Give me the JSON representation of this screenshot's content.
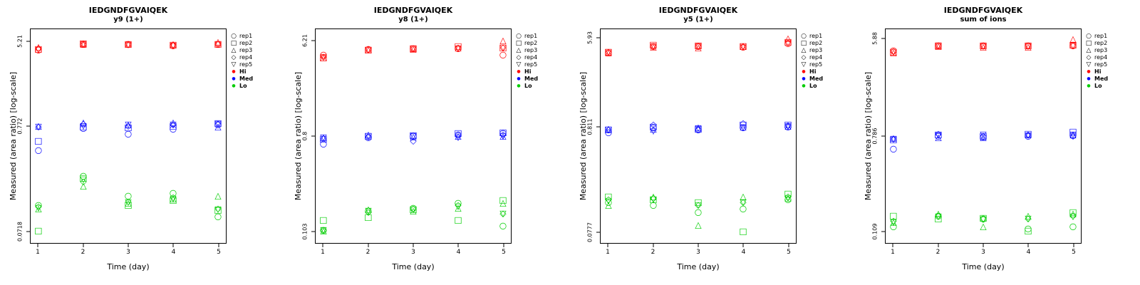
{
  "figure": {
    "xlabel": "Time (day)",
    "ylabel": "Measured (area ratio) [log-scale]",
    "x_ticks": [
      "1",
      "2",
      "3",
      "4",
      "5"
    ],
    "legend": {
      "rep_items": [
        {
          "label": "rep1",
          "marker": "circle"
        },
        {
          "label": "rep2",
          "marker": "square"
        },
        {
          "label": "rep3",
          "marker": "triangle"
        },
        {
          "label": "rep4",
          "marker": "diamond"
        },
        {
          "label": "rep5",
          "marker": "triangle-down"
        }
      ],
      "group_items": [
        {
          "label": "Hi",
          "color": "#FF0000"
        },
        {
          "label": "Med",
          "color": "#0000FF"
        },
        {
          "label": "Lo",
          "color": "#00CD00"
        }
      ]
    },
    "colors": {
      "hi": "#FF0000",
      "med": "#0000FF",
      "lo": "#00CD00"
    }
  },
  "chart_data": [
    {
      "type": "scatter",
      "title": "IEDGNDFGVAIQEK",
      "subtitle": "y9 (1+)",
      "xlabel": "Time (day)",
      "ylabel": "Measured (area ratio) [log-scale]",
      "x": [
        1,
        2,
        3,
        4,
        5
      ],
      "yscale": "log",
      "ylim": [
        0.055,
        7.0
      ],
      "yticks": [
        5.21,
        0.772,
        0.0718
      ],
      "ytick_labels": [
        "5.21",
        "0.772",
        "0.0718"
      ],
      "series": [
        {
          "name": "Hi",
          "color": "#FF0000",
          "reps": [
            {
              "name": "rep1",
              "marker": "circle",
              "values": [
                4.35,
                5.0,
                4.95,
                4.8,
                4.95
              ]
            },
            {
              "name": "rep2",
              "marker": "square",
              "values": [
                4.45,
                5.05,
                5.0,
                4.9,
                5.0
              ]
            },
            {
              "name": "rep3",
              "marker": "triangle",
              "values": [
                4.7,
                5.0,
                4.95,
                4.95,
                5.21
              ]
            },
            {
              "name": "rep4",
              "marker": "diamond",
              "values": [
                4.5,
                4.95,
                5.0,
                4.9,
                5.0
              ]
            },
            {
              "name": "rep5",
              "marker": "triangle-down",
              "values": [
                4.4,
                5.0,
                4.9,
                4.85,
                4.95
              ]
            }
          ]
        },
        {
          "name": "Med",
          "color": "#0000FF",
          "reps": [
            {
              "name": "rep1",
              "marker": "circle",
              "values": [
                0.45,
                0.74,
                0.65,
                0.73,
                0.8
              ]
            },
            {
              "name": "rep2",
              "marker": "square",
              "values": [
                0.55,
                0.76,
                0.75,
                0.78,
                0.83
              ]
            },
            {
              "name": "rep3",
              "marker": "triangle",
              "values": [
                0.78,
                0.85,
                0.8,
                0.84,
                0.77
              ]
            },
            {
              "name": "rep4",
              "marker": "diamond",
              "values": [
                0.76,
                0.82,
                0.78,
                0.8,
                0.82
              ]
            },
            {
              "name": "rep5",
              "marker": "triangle-down",
              "values": [
                0.77,
                0.78,
                0.81,
                0.8,
                0.82
              ]
            }
          ]
        },
        {
          "name": "Lo",
          "color": "#00CD00",
          "reps": [
            {
              "name": "rep1",
              "marker": "circle",
              "values": [
                0.13,
                0.25,
                0.16,
                0.17,
                0.1
              ]
            },
            {
              "name": "rep2",
              "marker": "square",
              "values": [
                0.0718,
                0.24,
                0.13,
                0.145,
                0.115
              ]
            },
            {
              "name": "rep3",
              "marker": "triangle",
              "values": [
                0.12,
                0.2,
                0.135,
                0.15,
                0.16
              ]
            },
            {
              "name": "rep4",
              "marker": "diamond",
              "values": [
                0.125,
                0.22,
                0.14,
                0.155,
                0.12
              ]
            },
            {
              "name": "rep5",
              "marker": "triangle-down",
              "values": [
                0.122,
                0.23,
                0.138,
                0.15,
                0.118
              ]
            }
          ]
        }
      ]
    },
    {
      "type": "scatter",
      "title": "IEDGNDFGVAIQEK",
      "subtitle": "y8 (1+)",
      "xlabel": "Time (day)",
      "ylabel": "Measured (area ratio) [log-scale]",
      "x": [
        1,
        2,
        3,
        4,
        5
      ],
      "yscale": "log",
      "ylim": [
        0.08,
        8.0
      ],
      "yticks": [
        6.21,
        0.8,
        0.103
      ],
      "ytick_labels": [
        "6.21",
        "0.8",
        "0.103"
      ],
      "series": [
        {
          "name": "Hi",
          "color": "#FF0000",
          "reps": [
            {
              "name": "rep1",
              "marker": "circle",
              "values": [
                4.6,
                5.2,
                5.3,
                5.3,
                4.6
              ]
            },
            {
              "name": "rep2",
              "marker": "square",
              "values": [
                4.3,
                5.15,
                5.25,
                5.5,
                5.4
              ]
            },
            {
              "name": "rep3",
              "marker": "triangle",
              "values": [
                4.35,
                5.1,
                5.2,
                5.4,
                6.21
              ]
            },
            {
              "name": "rep4",
              "marker": "diamond",
              "values": [
                4.4,
                5.2,
                5.3,
                5.35,
                5.4
              ]
            },
            {
              "name": "rep5",
              "marker": "triangle-down",
              "values": [
                4.4,
                5.15,
                5.25,
                5.3,
                5.35
              ]
            }
          ]
        },
        {
          "name": "Med",
          "color": "#0000FF",
          "reps": [
            {
              "name": "rep1",
              "marker": "circle",
              "values": [
                0.68,
                0.78,
                0.8,
                0.82,
                0.85
              ]
            },
            {
              "name": "rep2",
              "marker": "square",
              "values": [
                0.75,
                0.8,
                0.81,
                0.85,
                0.87
              ]
            },
            {
              "name": "rep3",
              "marker": "triangle",
              "values": [
                0.78,
                0.82,
                0.79,
                0.8,
                0.8
              ]
            },
            {
              "name": "rep4",
              "marker": "diamond",
              "values": [
                0.76,
                0.79,
                0.72,
                0.83,
                0.82
              ]
            },
            {
              "name": "rep5",
              "marker": "triangle-down",
              "values": [
                0.77,
                0.8,
                0.8,
                0.78,
                0.8
              ]
            }
          ]
        },
        {
          "name": "Lo",
          "color": "#00CD00",
          "reps": [
            {
              "name": "rep1",
              "marker": "circle",
              "values": [
                0.105,
                0.16,
                0.17,
                0.19,
                0.115
              ]
            },
            {
              "name": "rep2",
              "marker": "square",
              "values": [
                0.13,
                0.14,
                0.165,
                0.13,
                0.2
              ]
            },
            {
              "name": "rep3",
              "marker": "triangle",
              "values": [
                0.104,
                0.165,
                0.16,
                0.17,
                0.19
              ]
            },
            {
              "name": "rep4",
              "marker": "diamond",
              "values": [
                0.106,
                0.155,
                0.168,
                0.18,
                0.15
              ]
            },
            {
              "name": "rep5",
              "marker": "triangle-down",
              "values": [
                0.105,
                0.16,
                0.165,
                0.175,
                0.15
              ]
            }
          ]
        }
      ]
    },
    {
      "type": "scatter",
      "title": "IEDGNDFGVAIQEK",
      "subtitle": "y5 (1+)",
      "xlabel": "Time (day)",
      "ylabel": "Measured (area ratio) [log-scale]",
      "x": [
        1,
        2,
        3,
        4,
        5
      ],
      "yscale": "log",
      "ylim": [
        0.06,
        7.3
      ],
      "yticks": [
        5.93,
        0.811,
        0.0777
      ],
      "ytick_labels": [
        "5.93",
        "0.811",
        "0.0777"
      ],
      "series": [
        {
          "name": "Hi",
          "color": "#FF0000",
          "reps": [
            {
              "name": "rep1",
              "marker": "circle",
              "values": [
                4.3,
                5.0,
                5.0,
                4.9,
                5.3
              ]
            },
            {
              "name": "rep2",
              "marker": "square",
              "values": [
                4.35,
                5.1,
                5.05,
                5.0,
                5.5
              ]
            },
            {
              "name": "rep3",
              "marker": "triangle",
              "values": [
                4.3,
                4.9,
                4.85,
                4.95,
                5.93
              ]
            },
            {
              "name": "rep4",
              "marker": "diamond",
              "values": [
                4.4,
                5.0,
                5.0,
                5.0,
                5.4
              ]
            },
            {
              "name": "rep5",
              "marker": "triangle-down",
              "values": [
                4.35,
                5.0,
                4.95,
                4.95,
                5.4
              ]
            }
          ]
        },
        {
          "name": "Med",
          "color": "#0000FF",
          "reps": [
            {
              "name": "rep1",
              "marker": "circle",
              "values": [
                0.72,
                0.8,
                0.76,
                0.8,
                0.82
              ]
            },
            {
              "name": "rep2",
              "marker": "square",
              "values": [
                0.77,
                0.82,
                0.78,
                0.85,
                0.85
              ]
            },
            {
              "name": "rep3",
              "marker": "triangle",
              "values": [
                0.78,
                0.78,
                0.8,
                0.82,
                0.83
              ]
            },
            {
              "name": "rep4",
              "marker": "diamond",
              "values": [
                0.76,
                0.85,
                0.77,
                0.88,
                0.84
              ]
            },
            {
              "name": "rep5",
              "marker": "triangle-down",
              "values": [
                0.77,
                0.74,
                0.79,
                0.8,
                0.83
              ]
            }
          ]
        },
        {
          "name": "Lo",
          "color": "#00CD00",
          "reps": [
            {
              "name": "rep1",
              "marker": "circle",
              "values": [
                0.15,
                0.14,
                0.12,
                0.13,
                0.16
              ]
            },
            {
              "name": "rep2",
              "marker": "square",
              "values": [
                0.17,
                0.16,
                0.15,
                0.0777,
                0.18
              ]
            },
            {
              "name": "rep3",
              "marker": "triangle",
              "values": [
                0.14,
                0.17,
                0.09,
                0.17,
                0.165
              ]
            },
            {
              "name": "rep4",
              "marker": "diamond",
              "values": [
                0.16,
                0.165,
                0.14,
                0.15,
                0.17
              ]
            },
            {
              "name": "rep5",
              "marker": "triangle-down",
              "values": [
                0.155,
                0.16,
                0.14,
                0.15,
                0.165
              ]
            }
          ]
        }
      ]
    },
    {
      "type": "scatter",
      "title": "IEDGNDFGVAIQEK",
      "subtitle": "sum of ions",
      "xlabel": "Time (day)",
      "ylabel": "Measured (area ratio) [log-scale]",
      "x": [
        1,
        2,
        3,
        4,
        5
      ],
      "yscale": "log",
      "ylim": [
        0.085,
        7.2
      ],
      "yticks": [
        5.88,
        0.786,
        0.109
      ],
      "ytick_labels": [
        "5.88",
        "0.786",
        "0.109"
      ],
      "series": [
        {
          "name": "Hi",
          "color": "#FF0000",
          "reps": [
            {
              "name": "rep1",
              "marker": "circle",
              "values": [
                4.6,
                5.1,
                5.1,
                5.1,
                5.1
              ]
            },
            {
              "name": "rep2",
              "marker": "square",
              "values": [
                4.5,
                5.15,
                5.1,
                5.15,
                5.2
              ]
            },
            {
              "name": "rep3",
              "marker": "triangle",
              "values": [
                4.45,
                5.05,
                5.0,
                5.0,
                5.88
              ]
            },
            {
              "name": "rep4",
              "marker": "diamond",
              "values": [
                4.55,
                5.1,
                5.1,
                5.1,
                5.15
              ]
            },
            {
              "name": "rep5",
              "marker": "triangle-down",
              "values": [
                4.5,
                5.1,
                5.05,
                5.05,
                5.1
              ]
            }
          ]
        },
        {
          "name": "Med",
          "color": "#0000FF",
          "reps": [
            {
              "name": "rep1",
              "marker": "circle",
              "values": [
                0.6,
                0.78,
                0.77,
                0.78,
                0.79
              ]
            },
            {
              "name": "rep2",
              "marker": "square",
              "values": [
                0.73,
                0.8,
                0.78,
                0.82,
                0.85
              ]
            },
            {
              "name": "rep3",
              "marker": "triangle",
              "values": [
                0.75,
                0.76,
                0.76,
                0.8,
                0.8
              ]
            },
            {
              "name": "rep4",
              "marker": "diamond",
              "values": [
                0.74,
                0.82,
                0.78,
                0.81,
                0.78
              ]
            },
            {
              "name": "rep5",
              "marker": "triangle-down",
              "values": [
                0.74,
                0.79,
                0.8,
                0.79,
                0.8
              ]
            }
          ]
        },
        {
          "name": "Lo",
          "color": "#00CD00",
          "reps": [
            {
              "name": "rep1",
              "marker": "circle",
              "values": [
                0.12,
                0.15,
                0.14,
                0.115,
                0.12
              ]
            },
            {
              "name": "rep2",
              "marker": "square",
              "values": [
                0.15,
                0.14,
                0.142,
                0.109,
                0.16
              ]
            },
            {
              "name": "rep3",
              "marker": "triangle",
              "values": [
                0.13,
                0.155,
                0.12,
                0.15,
                0.155
              ]
            },
            {
              "name": "rep4",
              "marker": "diamond",
              "values": [
                0.135,
                0.15,
                0.14,
                0.14,
                0.15
              ]
            },
            {
              "name": "rep5",
              "marker": "triangle-down",
              "values": [
                0.13,
                0.148,
                0.138,
                0.14,
                0.148
              ]
            }
          ]
        }
      ]
    }
  ]
}
